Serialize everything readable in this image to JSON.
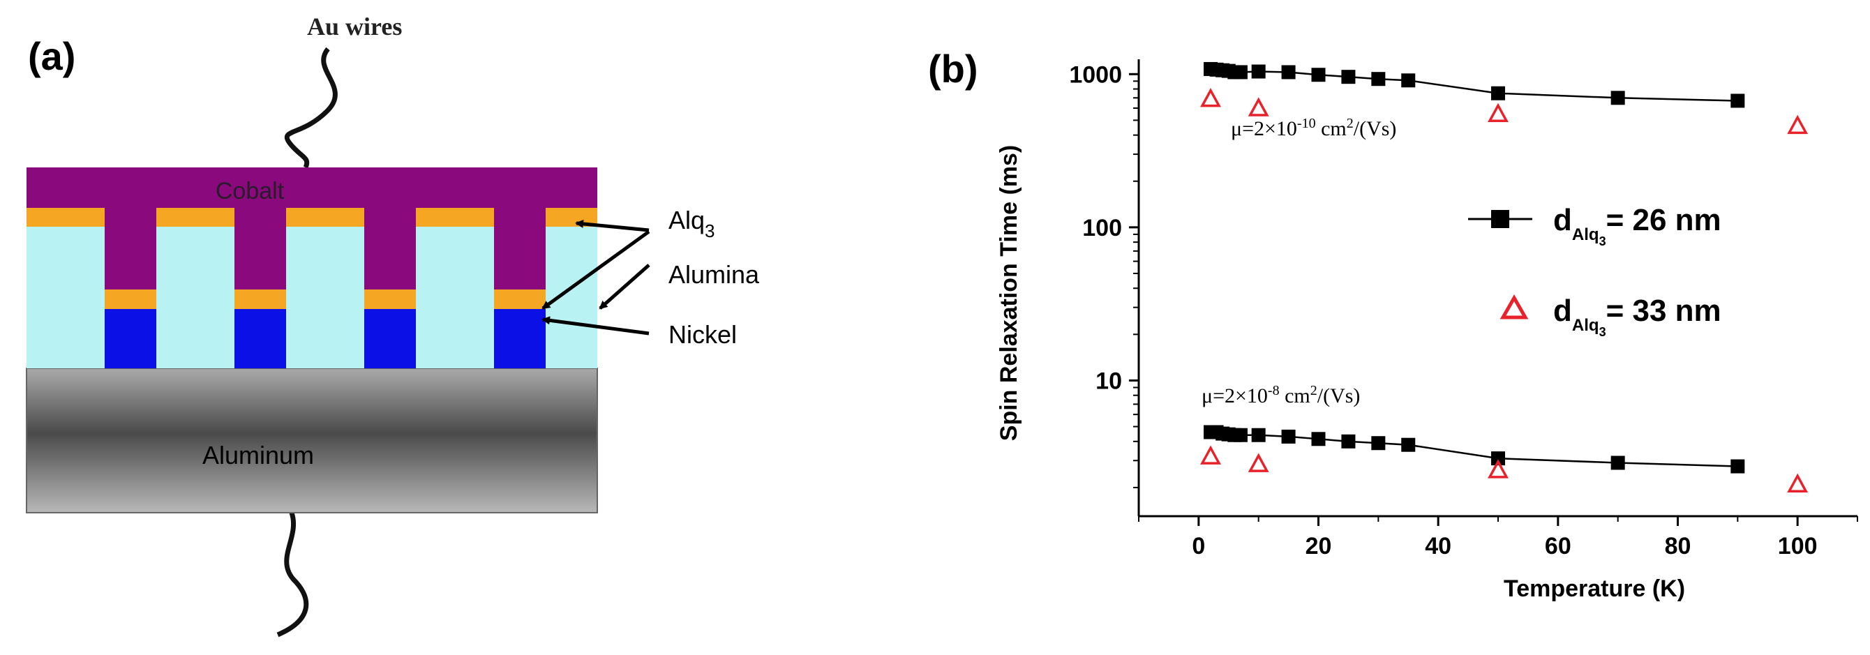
{
  "panel_a": {
    "label": "(a)",
    "wire_label": "Au wires",
    "layers": {
      "cobalt": "Cobalt",
      "aluminum": "Aluminum"
    },
    "callouts": {
      "alq3_main": "Alq",
      "alq3_sub": "3",
      "alumina": "Alumina",
      "nickel": "Nickel"
    },
    "colors": {
      "cobalt": "#8a0a7e",
      "alq3": "#f5a623",
      "alumina": "#b8f2f2",
      "nickel": "#0a10e6",
      "aluminum_light": "#b4b4b4",
      "aluminum_dark": "#555555"
    }
  },
  "panel_b": {
    "label": "(b)",
    "annotation_top": {
      "prefix": "μ=2×10",
      "exponent": "-10",
      "suffix": " cm",
      "unit_exp": "2",
      "tail": "/(Vs)"
    },
    "annotation_bottom": {
      "prefix": "μ=2×10",
      "exponent": "-8",
      "suffix": " cm",
      "unit_exp": "2",
      "tail": "/(Vs)"
    },
    "legend": [
      {
        "prefix": "d",
        "sub1": "Alq",
        "sub2": "3",
        "text": "= 26 nm"
      },
      {
        "prefix": "d",
        "sub1": "Alq",
        "sub2": "3",
        "text": "= 33 nm"
      }
    ]
  },
  "chart_data": {
    "type": "scatter",
    "xlabel": "Temperature (K)",
    "ylabel": "Spin Relaxation Time (ms)",
    "xlim": [
      -10,
      110
    ],
    "ylim": [
      1.3,
      1250
    ],
    "yscale": "log",
    "x_ticks": [
      0,
      20,
      40,
      60,
      80,
      100
    ],
    "y_ticks": [
      10,
      100,
      1000
    ],
    "y_tick_labels": [
      "10",
      "100",
      "1000"
    ],
    "x_tick_labels": [
      "0",
      "20",
      "40",
      "60",
      "80",
      "100"
    ],
    "legend_position": "right",
    "grid": false,
    "series": [
      {
        "marker": "square",
        "color": "#000000",
        "line": true,
        "x": [
          2,
          3,
          4,
          5,
          6,
          7,
          10,
          15,
          20,
          25,
          30,
          35,
          50,
          70,
          90
        ],
        "y": [
          1080,
          1070,
          1060,
          1050,
          1030,
          1030,
          1040,
          1030,
          990,
          960,
          930,
          910,
          750,
          700,
          670
        ]
      },
      {
        "marker": "triangle-open",
        "color": "#e8222a",
        "line": false,
        "x": [
          2,
          10,
          50,
          100
        ],
        "y": [
          690,
          600,
          550,
          460
        ]
      },
      {
        "marker": "square",
        "color": "#000000",
        "line": true,
        "x": [
          2,
          3,
          4,
          5,
          6,
          7,
          10,
          15,
          20,
          25,
          30,
          35,
          50,
          70,
          90
        ],
        "y": [
          4.6,
          4.6,
          4.5,
          4.45,
          4.4,
          4.4,
          4.4,
          4.3,
          4.15,
          4.0,
          3.9,
          3.8,
          3.1,
          2.9,
          2.75
        ]
      },
      {
        "marker": "triangle-open",
        "color": "#e8222a",
        "line": false,
        "x": [
          2,
          10,
          50,
          100
        ],
        "y": [
          3.2,
          2.85,
          2.6,
          2.1
        ]
      }
    ]
  }
}
